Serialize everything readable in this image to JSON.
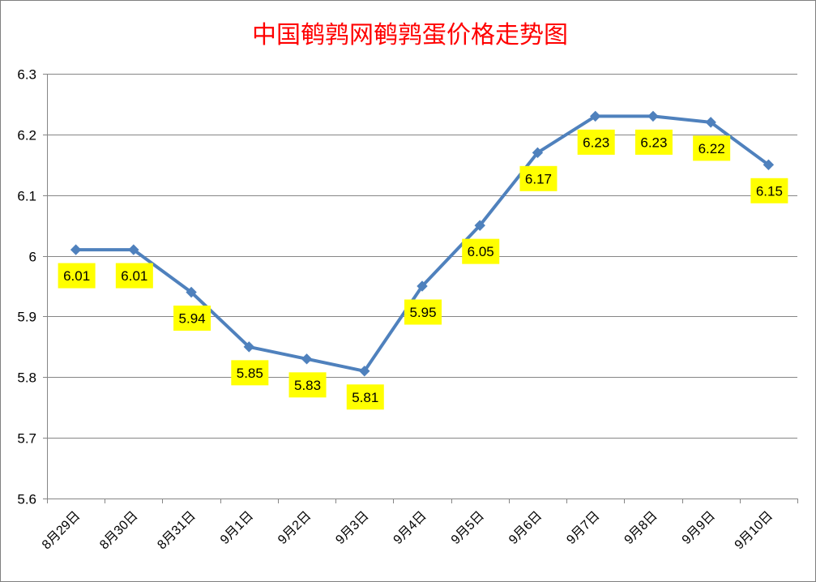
{
  "chart_data": {
    "type": "line",
    "title": "中国鹌鹑网鹌鹑蛋价格走势图",
    "xlabel": "",
    "ylabel": "",
    "categories": [
      "8月29日",
      "8月30日",
      "8月31日",
      "9月1日",
      "9月2日",
      "9月3日",
      "9月4日",
      "9月5日",
      "9月6日",
      "9月7日",
      "9月8日",
      "9月9日",
      "9月10日"
    ],
    "series": [
      {
        "name": "",
        "values": [
          6.01,
          6.01,
          5.94,
          5.85,
          5.83,
          5.81,
          5.95,
          6.05,
          6.17,
          6.23,
          6.23,
          6.22,
          6.15
        ],
        "labels": [
          "6.01",
          "6.01",
          "5.94",
          "5.85",
          "5.83",
          "5.81",
          "5.95",
          "6.05",
          "6.17",
          "6.23",
          "6.23",
          "6.22",
          "6.15"
        ]
      }
    ],
    "ylim": [
      5.6,
      6.3
    ],
    "yticks": [
      5.6,
      5.7,
      5.8,
      5.9,
      6.0,
      6.1,
      6.2,
      6.3
    ],
    "ytick_labels": [
      "5.6",
      "5.7",
      "5.8",
      "5.9",
      "6",
      "6.1",
      "6.2",
      "6.3"
    ],
    "grid": true,
    "legend": "none",
    "colors": {
      "line": "#4f81bd",
      "marker": "#4f81bd",
      "label_bg": "#ffff00",
      "title": "#ff0000",
      "grid": "#868686"
    },
    "marker": "diamond"
  }
}
